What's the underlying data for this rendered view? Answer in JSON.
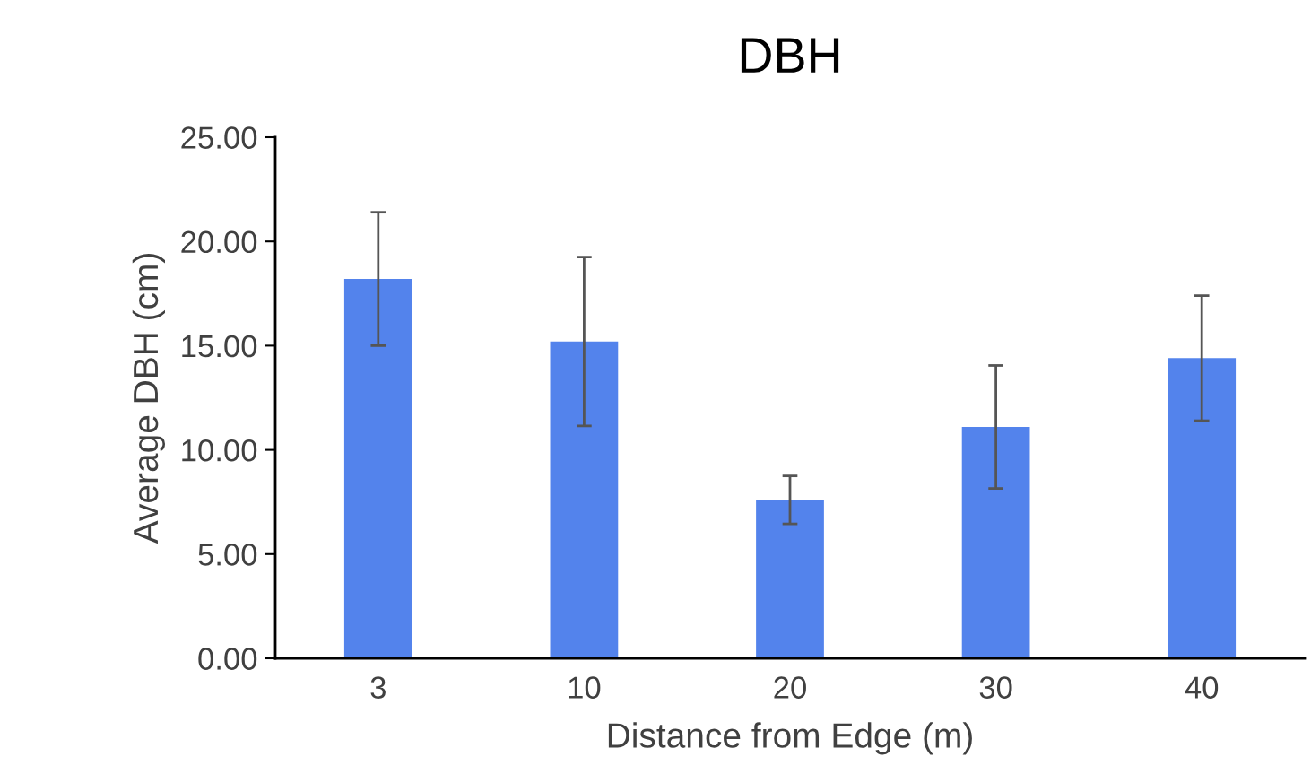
{
  "chart_data": {
    "type": "bar",
    "title": "DBH",
    "xlabel": "Distance from Edge (m)",
    "ylabel": "Average DBH (cm)",
    "categories": [
      "3",
      "10",
      "20",
      "30",
      "40"
    ],
    "values": [
      18.2,
      15.2,
      7.6,
      11.1,
      14.4
    ],
    "errors": [
      3.2,
      4.05,
      1.15,
      2.95,
      3.0
    ],
    "color": "#5383ec",
    "ylim": [
      0,
      25
    ],
    "yticks": [
      {
        "value": 0,
        "label": "0.00"
      },
      {
        "value": 5,
        "label": "5.00"
      },
      {
        "value": 10,
        "label": "10.00"
      },
      {
        "value": 15,
        "label": "15.00"
      },
      {
        "value": 20,
        "label": "20.00"
      },
      {
        "value": 25,
        "label": "25.00"
      }
    ],
    "grid": false,
    "legend": false
  }
}
